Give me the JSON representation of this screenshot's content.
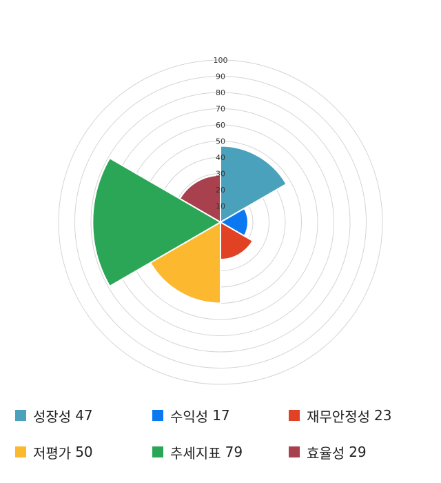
{
  "chart_data": {
    "type": "polar-area",
    "rlim": [
      0,
      100
    ],
    "r_ticks": [
      "10",
      "20",
      "30",
      "40",
      "50",
      "60",
      "70",
      "80",
      "90",
      "100"
    ],
    "grid": true,
    "legend_position": "bottom",
    "series": [
      {
        "name": "성장성",
        "value": 47,
        "color": "#4aa1bb"
      },
      {
        "name": "수익성",
        "value": 17,
        "color": "#0a78f0"
      },
      {
        "name": "재무안정성",
        "value": 23,
        "color": "#e04223"
      },
      {
        "name": "저평가",
        "value": 50,
        "color": "#fcb82e"
      },
      {
        "name": "추세지표",
        "value": 79,
        "color": "#2ba656"
      },
      {
        "name": "효율성",
        "value": 29,
        "color": "#a8404e"
      }
    ]
  }
}
